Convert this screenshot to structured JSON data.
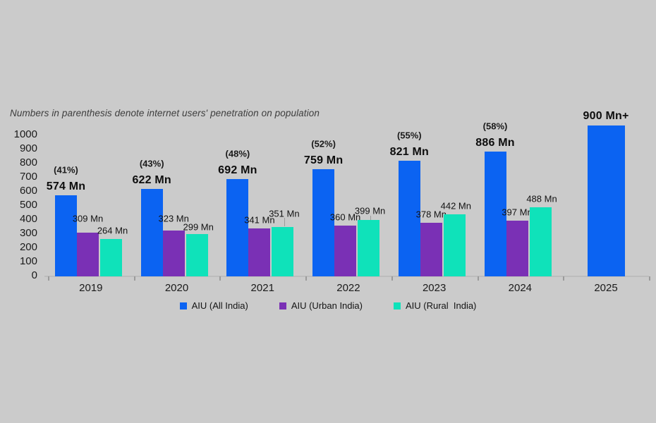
{
  "subtitle": "Numbers in parenthesis denote internet users' penetration on population",
  "legend": {
    "items": [
      {
        "label": "AIU (All India)",
        "color": "#0b63f2"
      },
      {
        "label": "AIU (Urban India)",
        "color": "#7a30b5"
      },
      {
        "label": "AIU (Rural  India)",
        "color": "#0fe2ba"
      }
    ]
  },
  "chart_data": {
    "type": "bar",
    "title": "",
    "subtitle": "Numbers in parenthesis denote internet users' penetration on population",
    "categories": [
      "2019",
      "2020",
      "2021",
      "2022",
      "2023",
      "2024",
      "2025"
    ],
    "series": [
      {
        "name": "AIU (All India)",
        "color": "#0b63f2",
        "values": [
          574,
          622,
          692,
          759,
          821,
          886,
          900
        ],
        "value_labels": [
          "574 Mn",
          "622 Mn",
          "692 Mn",
          "759 Mn",
          "821 Mn",
          "886 Mn",
          "900 Mn+"
        ],
        "bar_display_values": [
          574,
          622,
          692,
          759,
          821,
          886,
          1070
        ]
      },
      {
        "name": "AIU (Urban India)",
        "color": "#7a30b5",
        "values": [
          309,
          323,
          341,
          360,
          378,
          397,
          null
        ],
        "value_labels": [
          "309 Mn",
          "323 Mn",
          "341 Mn",
          "360 Mn",
          "378 Mn",
          "397 Mn",
          null
        ]
      },
      {
        "name": "AIU (Rural India)",
        "color": "#0fe2ba",
        "values": [
          264,
          299,
          351,
          399,
          442,
          488,
          null
        ],
        "value_labels": [
          "264 Mn",
          "299 Mn",
          "351 Mn",
          "399 Mn",
          "442 Mn",
          "488 Mn",
          null
        ]
      }
    ],
    "penetration_labels": [
      "(41%)",
      "(43%)",
      "(48%)",
      "(52%)",
      "(55%)",
      "(58%)",
      null
    ],
    "xlabel": "",
    "ylabel": "",
    "ylim": [
      0,
      1000
    ],
    "yticks": [
      0,
      100,
      200,
      300,
      400,
      500,
      600,
      700,
      800,
      900,
      1000
    ],
    "grid": false,
    "legend_position": "bottom"
  },
  "colors": {
    "background": "#cbcbcb",
    "axis_line": "#bdbdbd",
    "axis_tick": "#9b9b9b",
    "text": "#141414",
    "subtitle_text": "#3d3d3d"
  }
}
